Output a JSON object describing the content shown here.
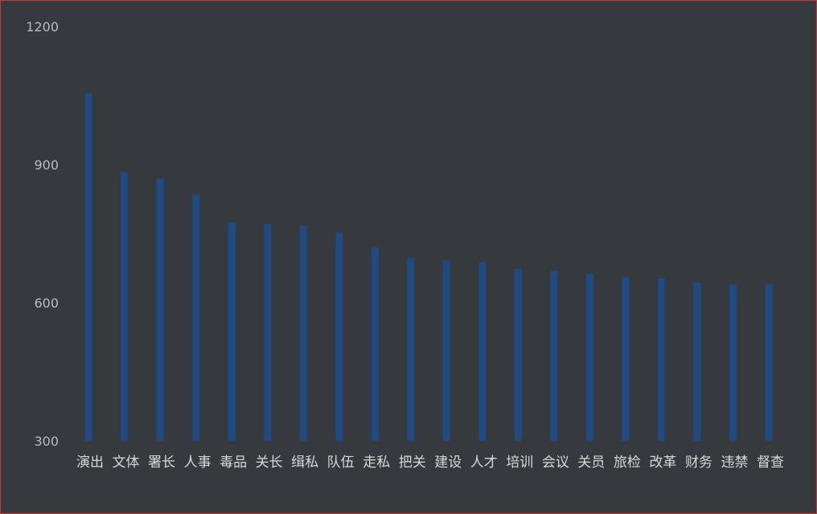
{
  "chart_data": {
    "type": "bar",
    "title": "",
    "xlabel": "",
    "ylabel": "",
    "ylim": [
      300,
      1200
    ],
    "yticks": [
      300,
      600,
      900,
      1200
    ],
    "grid": false,
    "legend": "none",
    "bar_color": "#1f4a82",
    "categories": [
      "演出",
      "文体",
      "署长",
      "人事",
      "毒品",
      "关长",
      "缉私",
      "队伍",
      "走私",
      "把关",
      "建设",
      "人才",
      "培训",
      "会议",
      "关员",
      "旅检",
      "改革",
      "财务",
      "违禁",
      "督查"
    ],
    "values": [
      1055,
      883,
      870,
      835,
      775,
      771,
      767,
      753,
      720,
      697,
      692,
      688,
      674,
      670,
      663,
      657,
      653,
      644,
      640,
      640
    ]
  }
}
